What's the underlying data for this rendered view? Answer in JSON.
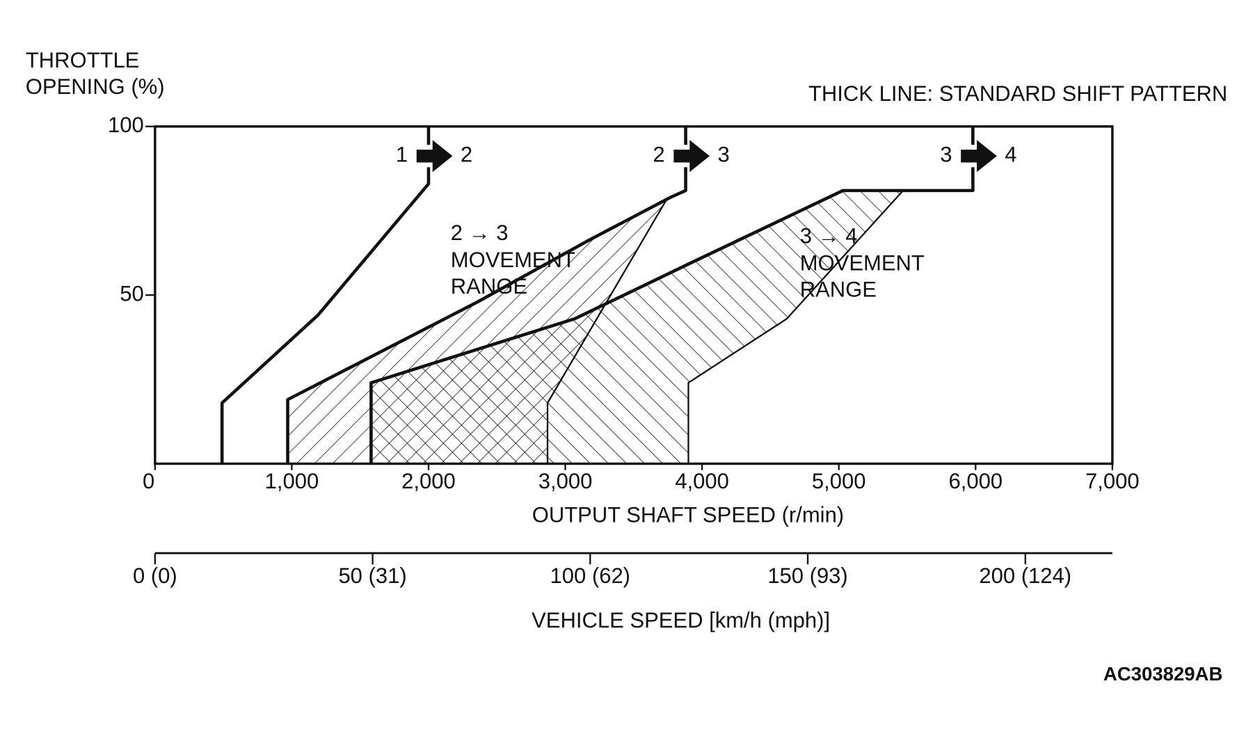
{
  "chart_data": {
    "type": "line",
    "y_label": [
      "THROTTLE",
      "OPENING (%)"
    ],
    "note": "THICK LINE: STANDARD SHIFT PATTERN",
    "x_label": "OUTPUT SHAFT SPEED (r/min)",
    "x2_label": "VEHICLE SPEED [km/h (mph)]",
    "code": "AC303829AB",
    "xlim": [
      0,
      7000
    ],
    "xticks": [
      0,
      {
        "value": 1000,
        "label": "1,000"
      },
      {
        "value": 2000,
        "label": "2,000"
      },
      {
        "value": 3000,
        "label": "3,000"
      },
      {
        "value": 4000,
        "label": "4,000"
      },
      {
        "value": 5000,
        "label": "5,000"
      },
      {
        "value": 6000,
        "label": "6,000"
      },
      {
        "value": 7000,
        "label": "7,000"
      }
    ],
    "ylim": [
      0,
      100
    ],
    "yticks": [
      50,
      100
    ],
    "x2lim": [
      0,
      220
    ],
    "x2ticks": [
      {
        "value": 0,
        "label": "0 (0)"
      },
      {
        "value": 50,
        "label": "50 (31)"
      },
      {
        "value": 100,
        "label": "100 (62)"
      },
      {
        "value": 150,
        "label": "150 (93)"
      },
      {
        "value": 200,
        "label": "200 (124)"
      }
    ],
    "color": "#111111",
    "series": [
      {
        "from": "1",
        "to": "2",
        "x": [
          490,
          490,
          1190,
          2000,
          2000
        ],
        "values": [
          0,
          18,
          44,
          83,
          100
        ]
      },
      {
        "from": "2",
        "to": "3",
        "x": [
          970,
          970,
          2360,
          3160,
          3770,
          3880,
          3880
        ],
        "values": [
          0,
          19,
          48,
          66,
          79,
          81,
          100
        ]
      },
      {
        "from": "3",
        "to": "4",
        "x": [
          1580,
          1580,
          3070,
          3890,
          5030,
          5980,
          5980
        ],
        "values": [
          0,
          24,
          43,
          59,
          81,
          81,
          100
        ]
      }
    ],
    "ranges": [
      {
        "label": [
          "2 → 3",
          "MOVEMENT",
          "RANGE"
        ],
        "x": [
          2870,
          2870,
          3750
        ],
        "values": [
          0,
          18,
          79
        ]
      },
      {
        "label": [
          "3 → 4",
          "MOVEMENT",
          "RANGE"
        ],
        "x": [
          3900,
          3900,
          4620,
          5470
        ],
        "values": [
          0,
          24,
          43,
          81
        ]
      }
    ]
  }
}
